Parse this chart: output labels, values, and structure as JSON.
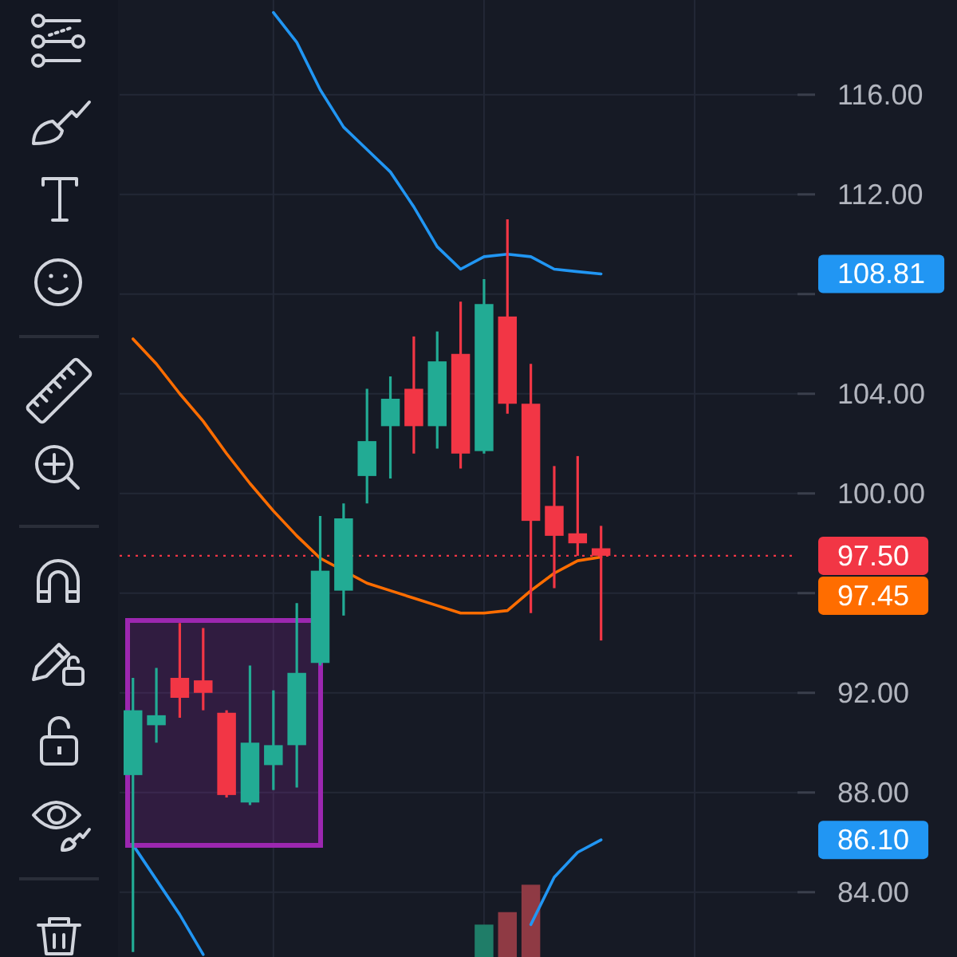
{
  "chart_data": {
    "type": "candlestick",
    "categories": [
      null,
      null,
      null,
      null,
      null,
      null,
      null,
      null,
      null,
      null,
      null,
      null,
      null,
      null,
      null,
      null,
      null,
      null,
      null,
      null,
      null
    ],
    "ohlc": [
      [
        88.7,
        92.6,
        81.6,
        91.3
      ],
      [
        90.7,
        93.0,
        90.0,
        91.1
      ],
      [
        92.6,
        94.8,
        91.0,
        91.8
      ],
      [
        92.5,
        94.6,
        91.3,
        92.0
      ],
      [
        91.2,
        91.3,
        87.8,
        87.9
      ],
      [
        87.6,
        93.1,
        87.5,
        90.0
      ],
      [
        89.1,
        92.1,
        88.1,
        89.9
      ],
      [
        89.9,
        95.6,
        88.2,
        92.8
      ],
      [
        93.2,
        99.1,
        93.1,
        96.9
      ],
      [
        96.1,
        99.6,
        95.1,
        99.0
      ],
      [
        100.7,
        104.2,
        99.6,
        102.1
      ],
      [
        102.7,
        104.7,
        100.6,
        103.8
      ],
      [
        104.2,
        106.3,
        101.6,
        102.7
      ],
      [
        102.7,
        106.5,
        101.8,
        105.3
      ],
      [
        105.6,
        107.7,
        101.0,
        101.6
      ],
      [
        101.7,
        108.6,
        101.6,
        107.6
      ],
      [
        107.1,
        111.0,
        103.2,
        103.6
      ],
      [
        103.6,
        105.2,
        95.2,
        98.9
      ],
      [
        99.5,
        101.1,
        96.2,
        98.3
      ],
      [
        98.4,
        101.5,
        97.5,
        98.0
      ],
      [
        97.8,
        98.7,
        94.1,
        97.5
      ]
    ],
    "colors": [
      "#22ab94",
      "#22ab94",
      "#f23645",
      "#f23645",
      "#f23645",
      "#22ab94",
      "#22ab94",
      "#22ab94",
      "#22ab94",
      "#22ab94",
      "#22ab94",
      "#22ab94",
      "#f23645",
      "#22ab94",
      "#f23645",
      "#22ab94",
      "#f23645",
      "#f23645",
      "#f23645",
      "#f23645",
      "#f23645"
    ],
    "series": [
      {
        "type": "line",
        "color": "#2196f3",
        "values": [
          null,
          null,
          null,
          null,
          null,
          null,
          119.3,
          118.1,
          116.2,
          114.7,
          113.8,
          112.9,
          111.5,
          109.9,
          109.0,
          109.5,
          109.6,
          109.5,
          109.0,
          108.9,
          108.81
        ]
      },
      {
        "type": "line",
        "color": "#ff6d00",
        "values": [
          106.2,
          105.2,
          104.0,
          102.9,
          101.6,
          100.4,
          99.3,
          98.3,
          97.4,
          null,
          96.4,
          96.1,
          95.8,
          95.5,
          95.2,
          95.2,
          95.3,
          96.1,
          96.8,
          97.3,
          97.45
        ]
      },
      {
        "type": "line",
        "color": "#2196f3",
        "values": [
          85.9,
          84.5,
          83.1,
          81.5,
          null,
          null,
          null,
          null,
          null,
          null,
          null,
          null,
          null,
          null,
          null,
          null,
          null,
          82.7,
          84.6,
          85.6,
          86.1
        ]
      },
      {
        "type": "bar",
        "values": [
          null,
          null,
          null,
          null,
          null,
          null,
          null,
          null,
          null,
          null,
          null,
          null,
          null,
          null,
          null,
          1.3,
          1.8,
          2.9,
          null,
          null,
          null
        ],
        "base": [
          null,
          null,
          null,
          null,
          null,
          null,
          null,
          null,
          null,
          null,
          null,
          null,
          null,
          null,
          null,
          81.4,
          81.4,
          81.4,
          null,
          null,
          null
        ],
        "colors": [
          null,
          null,
          null,
          null,
          null,
          null,
          null,
          null,
          null,
          null,
          null,
          null,
          null,
          null,
          null,
          "#1f7d68",
          "#8f3a44",
          "#8f3a44",
          null,
          null,
          null
        ]
      }
    ],
    "ylim": [
      81.4,
      119.8
    ],
    "yticks": [
      {
        "value": 84,
        "label": "84.00"
      },
      {
        "value": 88,
        "label": "88.00"
      },
      {
        "value": 92,
        "label": "92.00"
      },
      {
        "value": 96,
        "label": null
      },
      {
        "value": 100,
        "label": "100.00"
      },
      {
        "value": 104,
        "label": "104.00"
      },
      {
        "value": 108,
        "label": null
      },
      {
        "value": 112,
        "label": "112.00"
      },
      {
        "value": 116,
        "label": "116.00"
      }
    ],
    "ref_lines": [
      {
        "axis": "y",
        "value": 97.5,
        "label": "97.50",
        "color": "#f23645",
        "line_style": "dotted"
      }
    ],
    "annotations": [
      "108.81",
      "97.45",
      "86.10"
    ],
    "grid": true,
    "tick_labels": "y"
  }
}
